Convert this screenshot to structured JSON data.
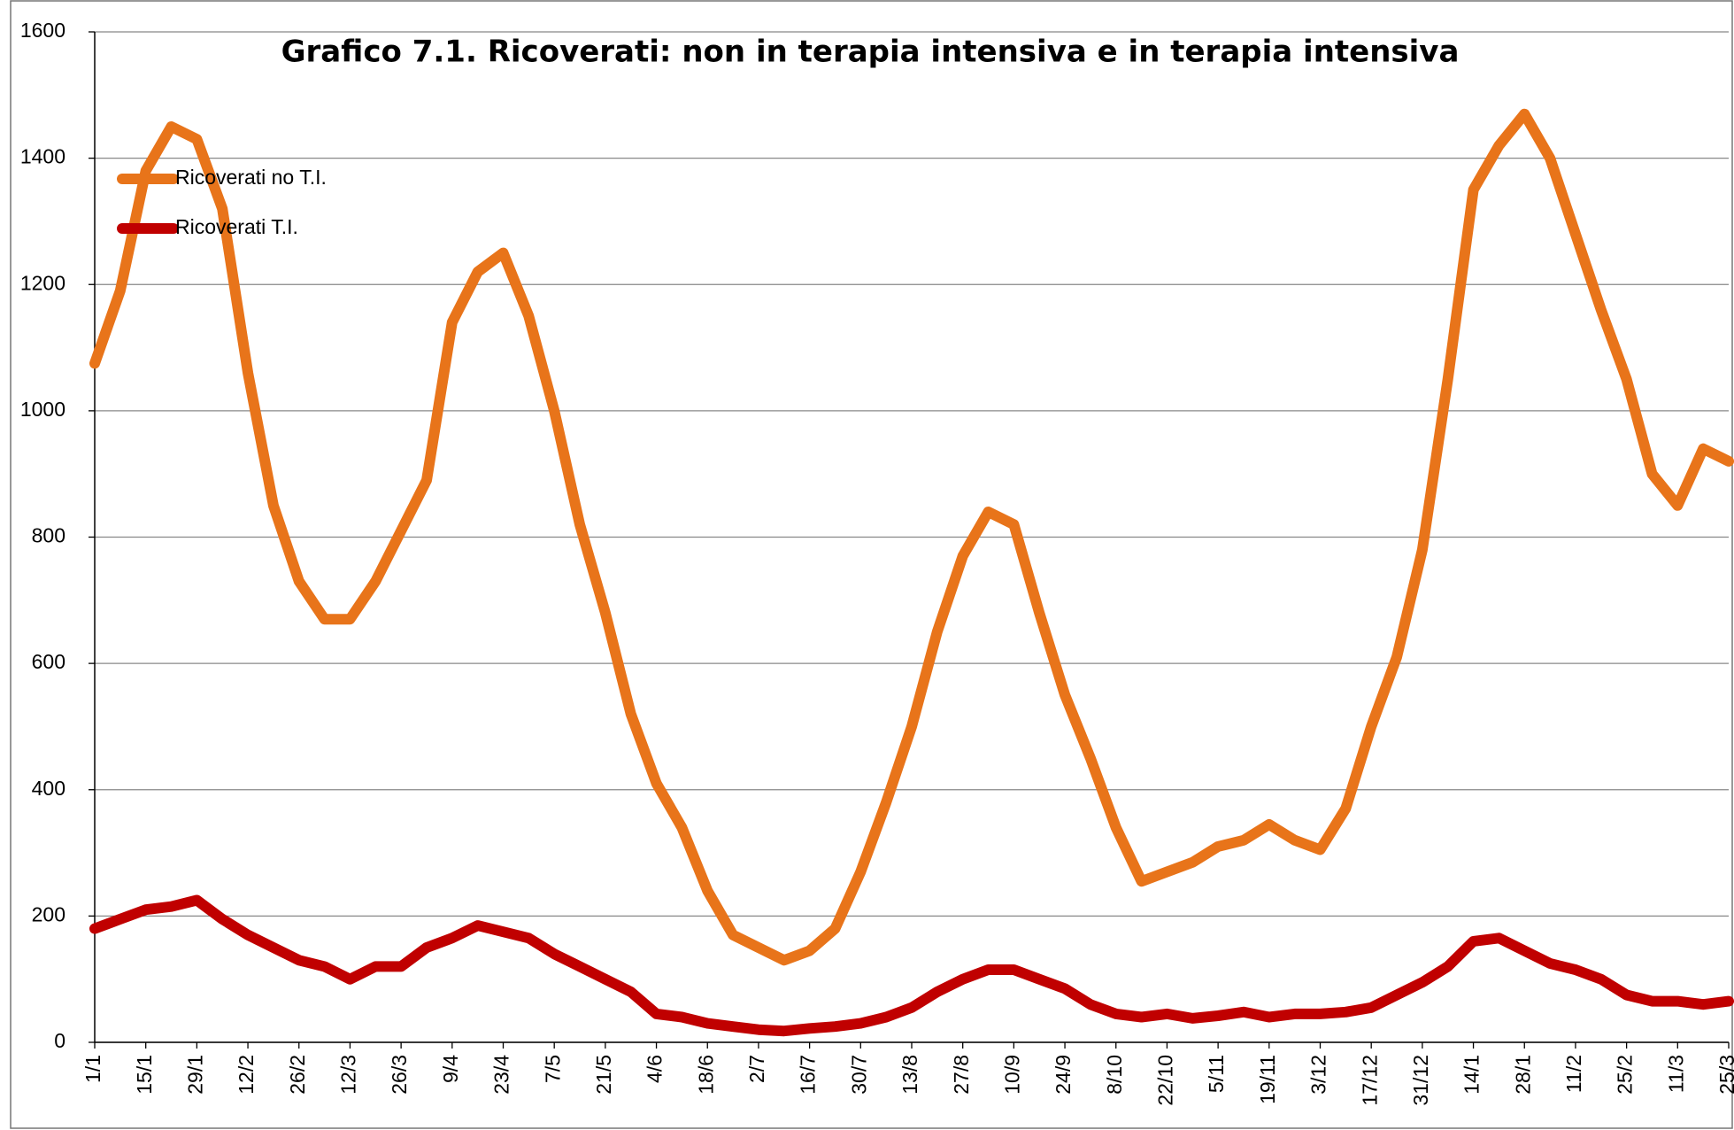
{
  "chart_data": {
    "type": "line",
    "title": "Grafico 7.1. Ricoverati: non in terapia intensiva e in terapia intensiva",
    "categories": [
      "1/1",
      null,
      "15/1",
      null,
      "29/1",
      null,
      "12/2",
      null,
      "26/2",
      null,
      "12/3",
      null,
      "26/3",
      null,
      "9/4",
      null,
      "23/4",
      null,
      "7/5",
      null,
      "21/5",
      null,
      "4/6",
      null,
      "18/6",
      null,
      "2/7",
      null,
      "16/7",
      null,
      "30/7",
      null,
      "13/8",
      null,
      "27/8",
      null,
      "10/9",
      null,
      "24/9",
      null,
      "8/10",
      null,
      "22/10",
      null,
      "5/11",
      null,
      "19/11",
      null,
      "3/12",
      null,
      "17/12",
      null,
      "31/12",
      null,
      "14/1",
      null,
      "28/1",
      null,
      "11/2",
      null,
      "25/2",
      null,
      "11/3",
      null,
      "25/3"
    ],
    "series": [
      {
        "name": "Ricoverati no T.I.",
        "color": "#E8741A",
        "values": [
          1075,
          1190,
          1380,
          1450,
          1430,
          1320,
          1060,
          850,
          730,
          670,
          670,
          730,
          810,
          890,
          1140,
          1220,
          1250,
          1150,
          1000,
          820,
          680,
          520,
          410,
          340,
          240,
          170,
          150,
          130,
          145,
          180,
          270,
          380,
          500,
          650,
          770,
          840,
          820,
          680,
          550,
          450,
          340,
          255,
          270,
          285,
          310,
          320,
          345,
          320,
          305,
          370,
          500,
          610,
          780,
          1050,
          1350,
          1420,
          1470,
          1400,
          1280,
          1160,
          1050,
          900,
          850,
          940,
          920
        ]
      },
      {
        "name": "Ricoverati T.I.",
        "color": "#C00000",
        "values": [
          180,
          195,
          210,
          215,
          225,
          195,
          170,
          150,
          130,
          120,
          100,
          120,
          120,
          150,
          165,
          185,
          175,
          165,
          140,
          120,
          100,
          80,
          45,
          40,
          30,
          25,
          20,
          18,
          22,
          25,
          30,
          40,
          55,
          80,
          100,
          115,
          115,
          100,
          85,
          60,
          45,
          40,
          45,
          38,
          42,
          48,
          40,
          45,
          45,
          48,
          55,
          75,
          95,
          120,
          160,
          165,
          145,
          125,
          115,
          100,
          75,
          65,
          65,
          60,
          65
        ]
      }
    ],
    "ylim": [
      0,
      1600
    ],
    "yticks": [
      0,
      200,
      400,
      600,
      800,
      1000,
      1200,
      1400,
      1600
    ],
    "grid": true,
    "legend": "upper left"
  }
}
